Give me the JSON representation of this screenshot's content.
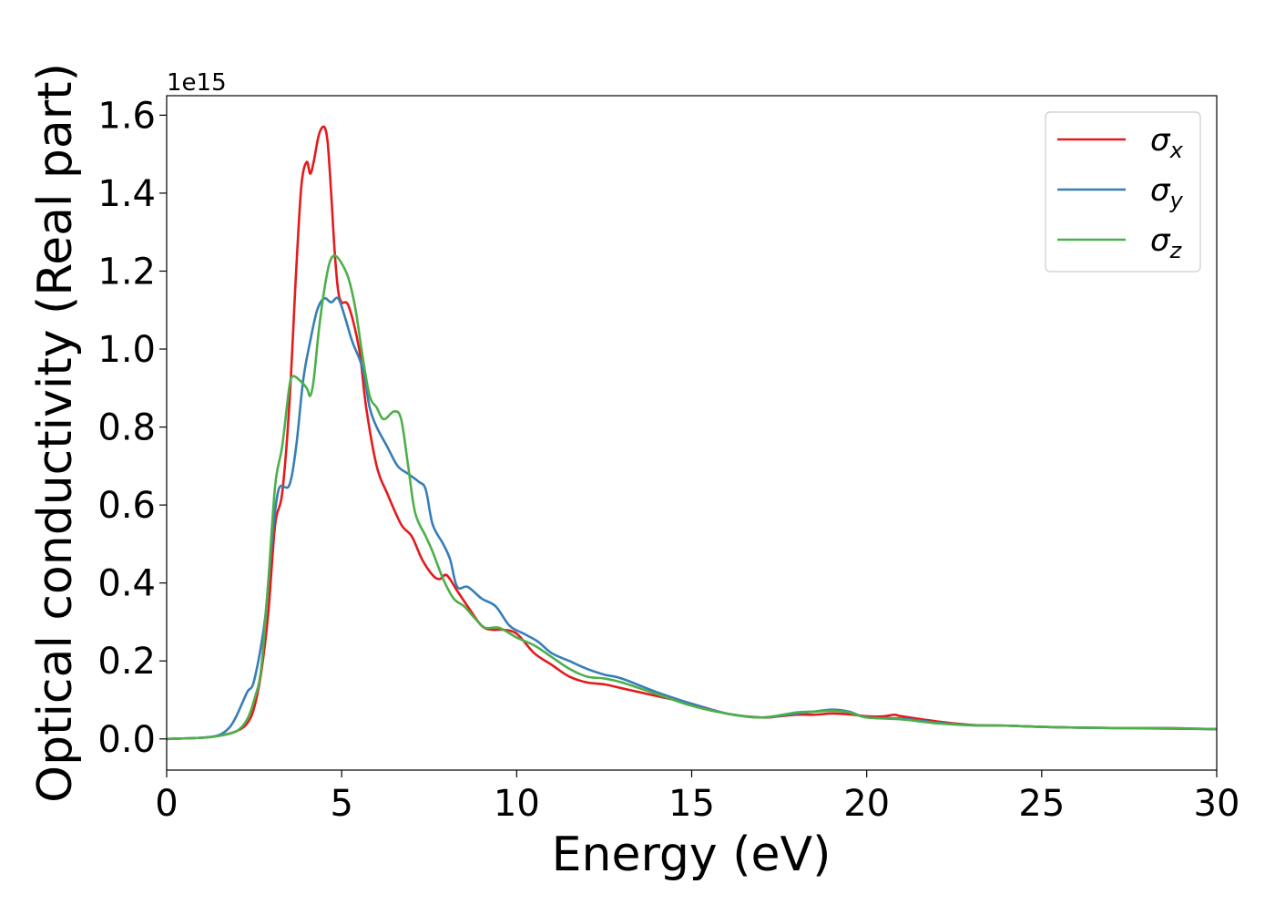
{
  "chart_data": {
    "type": "line",
    "title": "",
    "xlabel": "Energy (eV)",
    "ylabel": "Optical conductivity (Real part)",
    "y_offset_text": "1e15",
    "xlim": [
      0,
      30
    ],
    "ylim": [
      -0.08,
      1.65
    ],
    "x_ticks": [
      0,
      5,
      10,
      15,
      20,
      25,
      30
    ],
    "x_tick_labels": [
      "0",
      "5",
      "10",
      "15",
      "20",
      "25",
      "30"
    ],
    "y_ticks": [
      0.0,
      0.2,
      0.4,
      0.6,
      0.8,
      1.0,
      1.2,
      1.4,
      1.6
    ],
    "y_tick_labels": [
      "0.0",
      "0.2",
      "0.4",
      "0.6",
      "0.8",
      "1.0",
      "1.2",
      "1.4",
      "1.6"
    ],
    "grid": false,
    "legend_position": "upper right",
    "series": [
      {
        "name": "σx",
        "symbol": "σ",
        "subscript": "x",
        "color": "#e41a1c",
        "x": [
          0,
          1.0,
          1.5,
          2.0,
          2.3,
          2.5,
          2.7,
          2.9,
          3.1,
          3.3,
          3.5,
          3.7,
          3.85,
          4.0,
          4.1,
          4.2,
          4.35,
          4.5,
          4.6,
          4.7,
          4.8,
          4.9,
          5.0,
          5.2,
          5.5,
          5.7,
          6.0,
          6.3,
          6.7,
          7.0,
          7.3,
          7.6,
          7.8,
          8.0,
          8.3,
          8.6,
          9.0,
          9.3,
          9.6,
          10.0,
          10.5,
          11.0,
          11.5,
          12.0,
          12.5,
          13.0,
          13.5,
          14.0,
          15.0,
          16.0,
          17.0,
          17.5,
          18.0,
          18.5,
          19.0,
          19.5,
          20.0,
          20.5,
          20.8,
          21.0,
          22.0,
          23.0,
          24.0,
          25.0,
          26.0,
          27.0,
          28.0,
          29.0,
          30.0
        ],
        "y": [
          0.0,
          0.003,
          0.008,
          0.02,
          0.04,
          0.08,
          0.17,
          0.32,
          0.55,
          0.63,
          0.85,
          1.2,
          1.42,
          1.48,
          1.45,
          1.48,
          1.55,
          1.57,
          1.53,
          1.4,
          1.25,
          1.15,
          1.12,
          1.11,
          1.0,
          0.85,
          0.7,
          0.63,
          0.55,
          0.52,
          0.46,
          0.42,
          0.41,
          0.42,
          0.38,
          0.34,
          0.29,
          0.28,
          0.28,
          0.27,
          0.22,
          0.19,
          0.16,
          0.145,
          0.14,
          0.13,
          0.12,
          0.11,
          0.09,
          0.065,
          0.055,
          0.058,
          0.062,
          0.062,
          0.065,
          0.063,
          0.058,
          0.058,
          0.062,
          0.058,
          0.045,
          0.036,
          0.034,
          0.031,
          0.029,
          0.028,
          0.028,
          0.027,
          0.025
        ]
      },
      {
        "name": "σy",
        "symbol": "σ",
        "subscript": "y",
        "color": "#377eb8",
        "x": [
          0,
          1.0,
          1.5,
          1.8,
          2.0,
          2.3,
          2.5,
          2.8,
          3.0,
          3.2,
          3.5,
          3.7,
          3.9,
          4.1,
          4.3,
          4.5,
          4.7,
          4.9,
          5.1,
          5.3,
          5.6,
          5.8,
          6.0,
          6.3,
          6.6,
          6.9,
          7.2,
          7.4,
          7.6,
          7.9,
          8.1,
          8.3,
          8.6,
          9.0,
          9.4,
          9.8,
          10.2,
          10.6,
          11.0,
          11.5,
          12.0,
          12.5,
          13.0,
          14.0,
          15.0,
          16.0,
          17.0,
          18.0,
          18.5,
          19.0,
          19.5,
          20.0,
          21.0,
          22.0,
          23.0,
          24.0,
          25.0,
          26.0,
          27.0,
          28.0,
          29.0,
          30.0
        ],
        "y": [
          0.0,
          0.003,
          0.01,
          0.03,
          0.06,
          0.12,
          0.15,
          0.3,
          0.5,
          0.64,
          0.65,
          0.75,
          0.92,
          1.02,
          1.1,
          1.13,
          1.12,
          1.13,
          1.08,
          1.02,
          0.95,
          0.85,
          0.8,
          0.75,
          0.7,
          0.68,
          0.66,
          0.64,
          0.55,
          0.5,
          0.46,
          0.39,
          0.39,
          0.36,
          0.34,
          0.29,
          0.27,
          0.25,
          0.22,
          0.2,
          0.18,
          0.165,
          0.155,
          0.12,
          0.09,
          0.065,
          0.055,
          0.065,
          0.07,
          0.075,
          0.07,
          0.055,
          0.052,
          0.042,
          0.035,
          0.034,
          0.031,
          0.029,
          0.028,
          0.027,
          0.026,
          0.025
        ]
      },
      {
        "name": "σz",
        "symbol": "σ",
        "subscript": "z",
        "color": "#4daf4a",
        "x": [
          0,
          1.0,
          1.5,
          2.0,
          2.3,
          2.5,
          2.7,
          2.9,
          3.1,
          3.3,
          3.5,
          3.6,
          3.8,
          4.0,
          4.1,
          4.2,
          4.35,
          4.5,
          4.65,
          4.8,
          5.0,
          5.2,
          5.4,
          5.6,
          5.8,
          6.0,
          6.2,
          6.5,
          6.7,
          6.9,
          7.1,
          7.4,
          7.6,
          7.9,
          8.2,
          8.5,
          8.8,
          9.1,
          9.5,
          10.0,
          10.5,
          11.0,
          11.5,
          12.0,
          12.5,
          13.0,
          14.0,
          15.0,
          16.0,
          17.0,
          18.0,
          18.5,
          19.0,
          19.5,
          20.0,
          21.0,
          22.0,
          23.0,
          24.0,
          25.0,
          26.0,
          27.0,
          28.0,
          29.0,
          30.0
        ],
        "y": [
          0.0,
          0.003,
          0.008,
          0.02,
          0.05,
          0.1,
          0.18,
          0.4,
          0.65,
          0.75,
          0.9,
          0.93,
          0.92,
          0.9,
          0.88,
          0.92,
          1.05,
          1.15,
          1.22,
          1.24,
          1.22,
          1.18,
          1.1,
          0.98,
          0.88,
          0.85,
          0.82,
          0.84,
          0.82,
          0.7,
          0.58,
          0.52,
          0.48,
          0.41,
          0.36,
          0.34,
          0.31,
          0.285,
          0.285,
          0.26,
          0.24,
          0.21,
          0.18,
          0.16,
          0.155,
          0.145,
          0.115,
          0.085,
          0.065,
          0.055,
          0.068,
          0.07,
          0.072,
          0.068,
          0.055,
          0.05,
          0.04,
          0.035,
          0.034,
          0.031,
          0.029,
          0.028,
          0.028,
          0.027,
          0.025
        ]
      }
    ]
  }
}
